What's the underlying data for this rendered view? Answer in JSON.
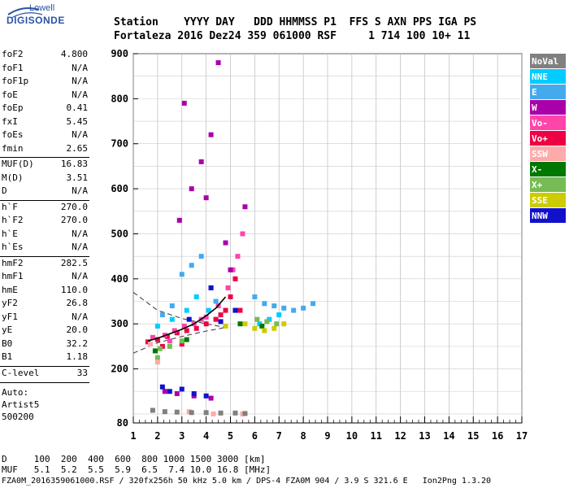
{
  "logo": {
    "top": "Lowell",
    "bottom": "DIGISONDE",
    "color": "#2a53a8"
  },
  "header": {
    "line1": "Station    YYYY DAY   DDD HHMMSS P1  FFS S AXN PPS IGA PS",
    "line2": "Fortaleza 2016 Dez24 359 061000 RSF     1 714 100 10+ 11"
  },
  "params": [
    {
      "label": "foF2",
      "value": "4.800"
    },
    {
      "label": "foF1",
      "value": "N/A"
    },
    {
      "label": "foF1p",
      "value": "N/A"
    },
    {
      "label": "foE",
      "value": "N/A"
    },
    {
      "label": "foEp",
      "value": "0.41"
    },
    {
      "label": "fxI",
      "value": "5.45"
    },
    {
      "label": "foEs",
      "value": "N/A"
    },
    {
      "label": "fmin",
      "value": "2.65"
    },
    {
      "label": "MUF(D)",
      "value": "16.83"
    },
    {
      "label": "M(D)",
      "value": "3.51"
    },
    {
      "label": "D",
      "value": "N/A"
    },
    {
      "label": "h`F",
      "value": "270.0"
    },
    {
      "label": "h`F2",
      "value": "270.0"
    },
    {
      "label": "h`E",
      "value": "N/A"
    },
    {
      "label": "h`Es",
      "value": "N/A"
    },
    {
      "label": "hmF2",
      "value": "282.5"
    },
    {
      "label": "hmF1",
      "value": "N/A"
    },
    {
      "label": "hmE",
      "value": "110.0"
    },
    {
      "label": "yF2",
      "value": "26.8"
    },
    {
      "label": "yF1",
      "value": "N/A"
    },
    {
      "label": "yE",
      "value": "20.0"
    },
    {
      "label": "B0",
      "value": "32.2"
    },
    {
      "label": "B1",
      "value": "1.18"
    },
    {
      "label": "C-level",
      "value": "33"
    }
  ],
  "autoscaling": {
    "line1": "Auto:",
    "line2": "Artist5",
    "line3": "500200"
  },
  "footer": {
    "d_row": "D     100  200  400  600  800 1000 1500 3000 [km]",
    "muf_row": "MUF   5.1  5.2  5.5  5.9  6.5  7.4 10.0 16.8 [MHz]",
    "file_row": "FZA0M_2016359061000.RSF / 320fx256h 50 kHz 5.0 km / DPS-4 FZA0M 904 / 3.9 S 321.6 E   Ion2Png 1.3.20"
  },
  "legend": [
    {
      "label": "NoVal",
      "bg": "#808080",
      "fg": "#ffffff"
    },
    {
      "label": "NNE",
      "bg": "#00ccff",
      "fg": "#ffffff"
    },
    {
      "label": "E",
      "bg": "#44aaee",
      "fg": "#ffffff"
    },
    {
      "label": "W",
      "bg": "#aa00aa",
      "fg": "#ffffff"
    },
    {
      "label": "Vo-",
      "bg": "#ff44aa",
      "fg": "#ffffff"
    },
    {
      "label": "Vo+",
      "bg": "#ee0044",
      "fg": "#ffffff"
    },
    {
      "label": "SSW",
      "bg": "#ffaaaa",
      "fg": "#ffffff"
    },
    {
      "label": "X-",
      "bg": "#007700",
      "fg": "#ffffff"
    },
    {
      "label": "X+",
      "bg": "#77bb55",
      "fg": "#ffffff"
    },
    {
      "label": "SSE",
      "bg": "#cccc00",
      "fg": "#ffffff"
    },
    {
      "label": "NNW",
      "bg": "#1111cc",
      "fg": "#ffffff"
    }
  ],
  "chart_data": {
    "type": "scatter",
    "title": "",
    "xlabel": "",
    "ylabel": "",
    "xlim": [
      1,
      17
    ],
    "ylim": [
      80,
      900
    ],
    "x_ticks": [
      1,
      2,
      3,
      4,
      5,
      6,
      7,
      8,
      9,
      10,
      11,
      12,
      13,
      14,
      15,
      16,
      17
    ],
    "y_ticks": [
      80,
      200,
      300,
      400,
      500,
      600,
      700,
      800,
      900
    ],
    "grid": true,
    "series": [
      {
        "name": "Vo+",
        "color": "#ee0044",
        "points": [
          [
            1.6,
            260
          ],
          [
            2.0,
            265
          ],
          [
            2.4,
            272
          ],
          [
            2.8,
            280
          ],
          [
            3.2,
            285
          ],
          [
            3.6,
            290
          ],
          [
            4.0,
            300
          ],
          [
            4.4,
            310
          ],
          [
            4.8,
            330
          ],
          [
            5.0,
            360
          ],
          [
            5.2,
            400
          ],
          [
            5.4,
            330
          ],
          [
            4.6,
            320
          ],
          [
            3.0,
            255
          ],
          [
            2.2,
            250
          ]
        ]
      },
      {
        "name": "Vo-",
        "color": "#ff44aa",
        "points": [
          [
            1.8,
            270
          ],
          [
            2.3,
            275
          ],
          [
            2.7,
            285
          ],
          [
            3.1,
            295
          ],
          [
            3.5,
            300
          ],
          [
            4.0,
            315
          ],
          [
            4.5,
            340
          ],
          [
            4.9,
            380
          ],
          [
            5.3,
            450
          ],
          [
            5.5,
            500
          ],
          [
            5.1,
            420
          ],
          [
            3.8,
            310
          ],
          [
            2.5,
            262
          ]
        ]
      },
      {
        "name": "W",
        "color": "#aa00aa",
        "points": [
          [
            2.9,
            530
          ],
          [
            3.4,
            600
          ],
          [
            3.8,
            660
          ],
          [
            4.2,
            720
          ],
          [
            4.5,
            880
          ],
          [
            3.1,
            790
          ],
          [
            2.3,
            150
          ],
          [
            2.8,
            145
          ],
          [
            3.5,
            140
          ],
          [
            4.2,
            135
          ],
          [
            5.0,
            420
          ],
          [
            4.8,
            480
          ],
          [
            5.6,
            560
          ],
          [
            4.0,
            580
          ]
        ]
      },
      {
        "name": "E",
        "color": "#44aaee",
        "points": [
          [
            2.2,
            320
          ],
          [
            2.6,
            340
          ],
          [
            3.0,
            410
          ],
          [
            3.4,
            430
          ],
          [
            3.8,
            450
          ],
          [
            4.2,
            380
          ],
          [
            6.0,
            360
          ],
          [
            6.4,
            345
          ],
          [
            6.8,
            340
          ],
          [
            7.2,
            335
          ],
          [
            7.6,
            330
          ],
          [
            8.0,
            335
          ],
          [
            8.4,
            345
          ],
          [
            5.2,
            330
          ],
          [
            4.4,
            350
          ]
        ]
      },
      {
        "name": "NNE",
        "color": "#00ccff",
        "points": [
          [
            2.0,
            295
          ],
          [
            2.6,
            310
          ],
          [
            3.2,
            330
          ],
          [
            3.6,
            360
          ],
          [
            4.1,
            330
          ],
          [
            6.2,
            300
          ],
          [
            6.6,
            310
          ],
          [
            7.0,
            320
          ]
        ]
      },
      {
        "name": "NNW",
        "color": "#1111cc",
        "points": [
          [
            2.2,
            160
          ],
          [
            2.5,
            150
          ],
          [
            3.0,
            155
          ],
          [
            3.5,
            145
          ],
          [
            4.0,
            140
          ],
          [
            4.6,
            305
          ],
          [
            4.2,
            380
          ],
          [
            5.2,
            330
          ],
          [
            3.3,
            310
          ]
        ]
      },
      {
        "name": "X+",
        "color": "#77bb55",
        "points": [
          [
            2.1,
            245
          ],
          [
            2.5,
            250
          ],
          [
            3.0,
            262
          ],
          [
            6.1,
            310
          ],
          [
            6.5,
            305
          ],
          [
            6.9,
            300
          ],
          [
            2.0,
            225
          ]
        ]
      },
      {
        "name": "X-",
        "color": "#007700",
        "points": [
          [
            1.9,
            240
          ],
          [
            3.2,
            265
          ],
          [
            5.4,
            300
          ],
          [
            6.3,
            295
          ]
        ]
      },
      {
        "name": "SSE",
        "color": "#cccc00",
        "points": [
          [
            6.0,
            290
          ],
          [
            6.4,
            285
          ],
          [
            6.8,
            290
          ],
          [
            7.2,
            300
          ],
          [
            5.6,
            300
          ],
          [
            4.8,
            295
          ]
        ]
      },
      {
        "name": "SSW",
        "color": "#ffaaaa",
        "points": [
          [
            1.7,
            255
          ],
          [
            2.0,
            215
          ],
          [
            3.3,
            105
          ],
          [
            4.3,
            100
          ],
          [
            5.5,
            100
          ]
        ]
      },
      {
        "name": "NoVal",
        "color": "#808080",
        "points": [
          [
            1.8,
            108
          ],
          [
            2.3,
            105
          ],
          [
            2.8,
            104
          ],
          [
            3.4,
            103
          ],
          [
            4.0,
            103
          ],
          [
            4.6,
            102
          ],
          [
            5.2,
            102
          ],
          [
            5.6,
            101
          ]
        ]
      }
    ],
    "profile": [
      [
        1.6,
        262
      ],
      [
        2.0,
        268
      ],
      [
        2.5,
        278
      ],
      [
        3.0,
        288
      ],
      [
        3.5,
        300
      ],
      [
        4.0,
        318
      ],
      [
        4.4,
        335
      ],
      [
        4.8,
        360
      ]
    ],
    "dashed_lines": [
      [
        [
          1.0,
          370
        ],
        [
          2.0,
          330
        ],
        [
          3.0,
          312
        ],
        [
          4.0,
          300
        ],
        [
          4.8,
          292
        ]
      ],
      [
        [
          1.0,
          235
        ],
        [
          2.0,
          258
        ],
        [
          3.0,
          272
        ],
        [
          4.0,
          284
        ],
        [
          4.8,
          292
        ]
      ]
    ]
  }
}
